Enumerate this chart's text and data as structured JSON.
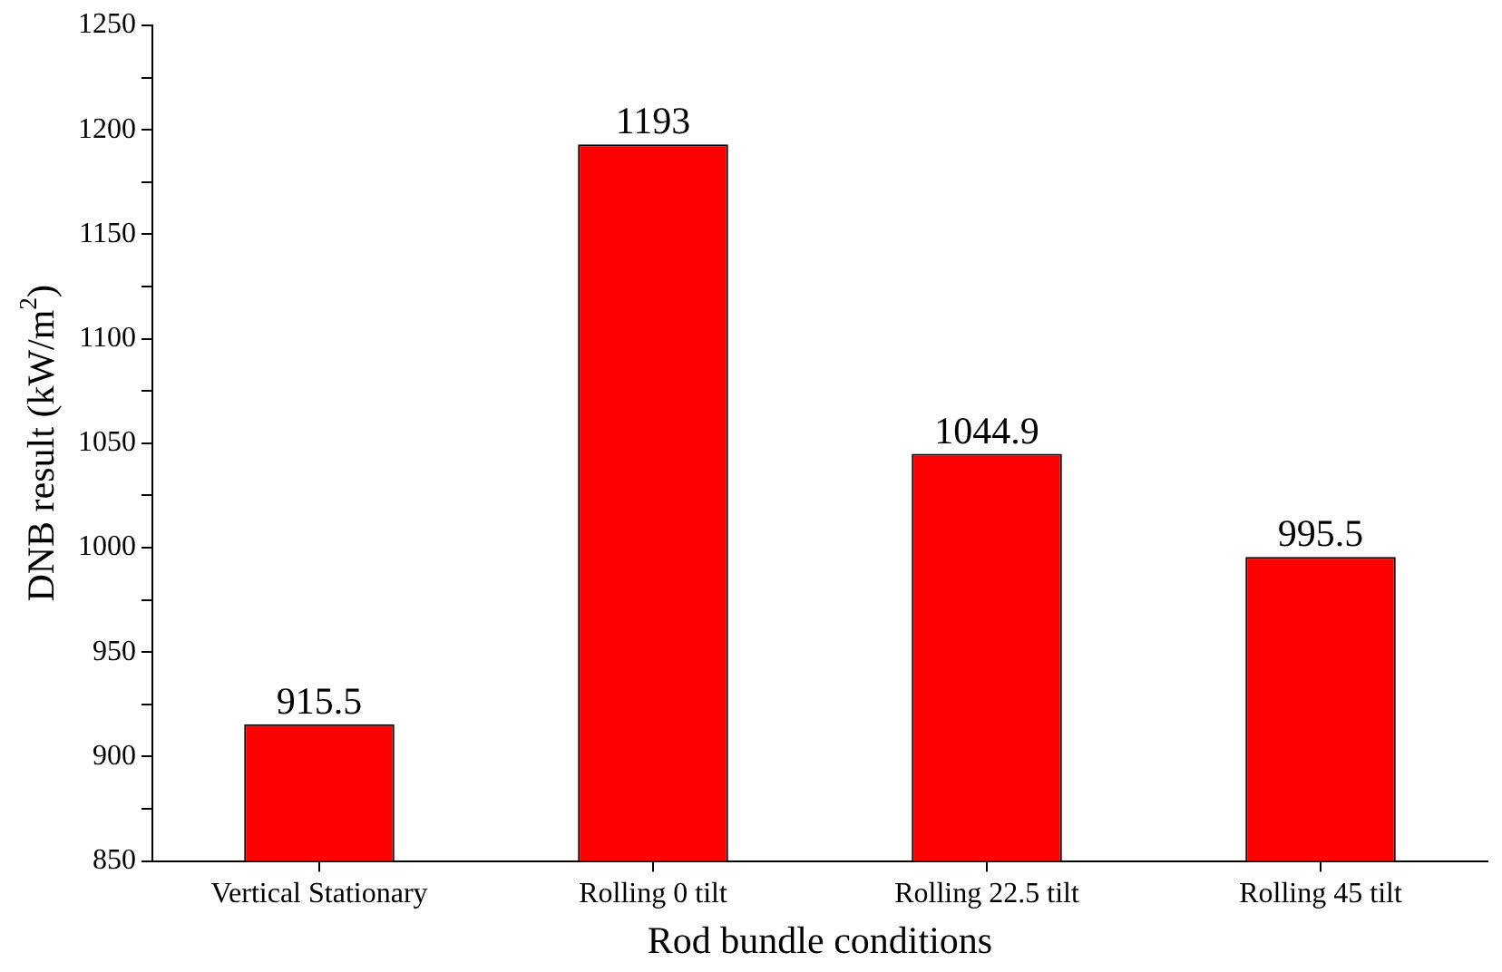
{
  "chart_data": {
    "type": "bar",
    "xlabel": "Rod bundle conditions",
    "ylabel": "DNB result (kW/m$^{2}$)",
    "categories": [
      "Vertical Stationary",
      "Rolling 0 tilt",
      "Rolling 22.5 tilt",
      "Rolling 45 tilt"
    ],
    "values": [
      915.5,
      1193,
      1044.9,
      995.5
    ],
    "color": "#ff0000",
    "data_labels": true,
    "grid": false,
    "legend": false,
    "ylim": [
      850,
      1250
    ],
    "yticks": [
      850,
      {
        "value": 875,
        "label": null
      },
      900,
      {
        "value": 925,
        "label": null
      },
      950,
      {
        "value": 975,
        "label": null
      },
      1000,
      {
        "value": 1025,
        "label": null
      },
      1050,
      {
        "value": 1075,
        "label": null
      },
      1100,
      {
        "value": 1125,
        "label": null
      },
      1150,
      {
        "value": 1175,
        "label": null
      },
      1200,
      {
        "value": 1225,
        "label": null
      },
      1250
    ]
  }
}
